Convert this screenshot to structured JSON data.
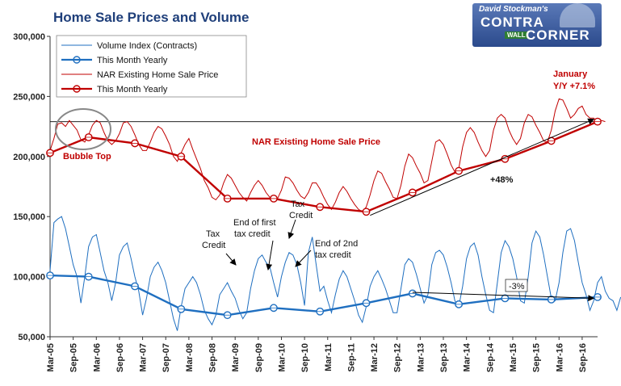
{
  "chart_data": {
    "type": "line",
    "title": "Home Sale Prices and Volume",
    "ylim": [
      50000,
      300000
    ],
    "y_ticks": [
      "50,000",
      "100,000",
      "150,000",
      "200,000",
      "250,000",
      "300,000"
    ],
    "y_tick_values": [
      50000,
      100000,
      150000,
      200000,
      250000,
      300000
    ],
    "x_ticks": [
      "Mar-05",
      "Sep-05",
      "Mar-06",
      "Sep-06",
      "Mar-07",
      "Sep-07",
      "Mar-08",
      "Sep-08",
      "Mar-09",
      "Sep-09",
      "Mar-10",
      "Sep-10",
      "Mar-11",
      "Sep-11",
      "Mar-12",
      "Sep-12",
      "Mar-13",
      "Sep-13",
      "Mar-14",
      "Sep-14",
      "Mar-15",
      "Sep-15",
      "Mar-16",
      "Sep-16"
    ],
    "x_start": "2005-03",
    "x_end": "2017-01",
    "legend_position": "top-left",
    "series": [
      {
        "name": "Volume Index (Contracts)",
        "color": "#1f6fc0",
        "values": [
          105000,
          145000,
          148000,
          150000,
          140000,
          125000,
          110000,
          100000,
          78000,
          100000,
          125000,
          133000,
          135000,
          120000,
          105000,
          95000,
          80000,
          95000,
          118000,
          125000,
          128000,
          115000,
          100000,
          88000,
          68000,
          82000,
          100000,
          108000,
          112000,
          105000,
          95000,
          80000,
          65000,
          55000,
          75000,
          90000,
          95000,
          100000,
          95000,
          85000,
          72000,
          65000,
          60000,
          68000,
          85000,
          90000,
          95000,
          88000,
          82000,
          72000,
          65000,
          70000,
          90000,
          105000,
          115000,
          118000,
          112000,
          108000,
          95000,
          83000,
          100000,
          112000,
          120000,
          118000,
          110000,
          95000,
          76000,
          120000,
          133000,
          110000,
          88000,
          92000,
          80000,
          70000,
          85000,
          98000,
          105000,
          100000,
          90000,
          80000,
          68000,
          62000,
          75000,
          92000,
          100000,
          105000,
          98000,
          90000,
          80000,
          70000,
          70000,
          90000,
          110000,
          115000,
          112000,
          102000,
          90000,
          78000,
          85000,
          110000,
          120000,
          122000,
          118000,
          108000,
          95000,
          80000,
          75000,
          92000,
          115000,
          125000,
          128000,
          118000,
          100000,
          85000,
          72000,
          70000,
          95000,
          120000,
          130000,
          125000,
          115000,
          100000,
          80000,
          78000,
          100000,
          128000,
          138000,
          133000,
          118000,
          100000,
          82000,
          80000,
          95000,
          120000,
          138000,
          140000,
          130000,
          112000,
          95000,
          85000,
          72000,
          80000,
          95000,
          100000,
          88000,
          82000,
          80000,
          72000,
          83000
        ]
      },
      {
        "name": "This Month Yearly",
        "color": "#1f6fc0",
        "dates": [
          "2005-03",
          "2006-01",
          "2007-01",
          "2008-01",
          "2009-01",
          "2010-01",
          "2011-01",
          "2012-01",
          "2013-01",
          "2014-01",
          "2015-01",
          "2016-01",
          "2017-01"
        ],
        "values": [
          101000,
          100000,
          92000,
          73000,
          68000,
          74000,
          71000,
          78000,
          86000,
          77000,
          82000,
          81000,
          83000
        ]
      },
      {
        "name": "NAR Existing Home Sale Price",
        "color": "#c00000",
        "values": [
          205000,
          215000,
          227000,
          228000,
          225000,
          230000,
          226000,
          222000,
          214000,
          212000,
          218000,
          226000,
          230000,
          228000,
          220000,
          213000,
          210000,
          213000,
          219000,
          228000,
          229000,
          225000,
          218000,
          210000,
          205000,
          205000,
          212000,
          220000,
          225000,
          223000,
          217000,
          210000,
          200000,
          196000,
          203000,
          210000,
          215000,
          206000,
          198000,
          190000,
          180000,
          174000,
          166000,
          164000,
          168000,
          178000,
          185000,
          182000,
          176000,
          170000,
          166000,
          163000,
          170000,
          176000,
          180000,
          176000,
          170000,
          166000,
          164000,
          165000,
          172000,
          183000,
          182000,
          178000,
          172000,
          167000,
          165000,
          170000,
          178000,
          178000,
          173000,
          166000,
          160000,
          156000,
          162000,
          170000,
          175000,
          171000,
          165000,
          160000,
          156000,
          154000,
          158000,
          168000,
          180000,
          188000,
          186000,
          179000,
          173000,
          166000,
          165000,
          176000,
          192000,
          202000,
          199000,
          192000,
          186000,
          178000,
          180000,
          196000,
          212000,
          214000,
          210000,
          202000,
          193000,
          187000,
          190000,
          208000,
          220000,
          224000,
          220000,
          212000,
          205000,
          200000,
          205000,
          222000,
          232000,
          235000,
          232000,
          222000,
          215000,
          210000,
          215000,
          228000,
          235000,
          233000,
          226000,
          220000,
          213000,
          212000,
          222000,
          238000,
          248000,
          247000,
          240000,
          232000,
          235000,
          240000,
          242000,
          235000,
          232000,
          232000,
          228000,
          230000,
          229000
        ]
      },
      {
        "name": "This Month Yearly",
        "color": "#c00000",
        "dates": [
          "2005-03",
          "2006-01",
          "2007-01",
          "2008-01",
          "2009-01",
          "2010-01",
          "2011-01",
          "2012-01",
          "2013-01",
          "2014-01",
          "2015-01",
          "2016-01",
          "2017-01"
        ],
        "values": [
          203000,
          216000,
          211000,
          200000,
          165000,
          165000,
          158000,
          154000,
          170000,
          188000,
          198000,
          213000,
          229000
        ]
      }
    ],
    "annotations": {
      "bubble_top": "Bubble Top",
      "nar_label": "NAR Existing Home Sale Price",
      "january": "January",
      "yoy": "Y/Y +7.1%",
      "plus48": "+48%",
      "minus3": "-3%",
      "tax_credit_1a": "Tax",
      "tax_credit_1b": "Credit",
      "end_first_a": "End of first",
      "end_first_b": "tax credit",
      "tax_credit_2a": "Tax",
      "tax_credit_2b": "Credit",
      "end_second_a": "End of 2nd",
      "end_second_b": "tax credit"
    }
  },
  "logo": {
    "top": "David Stockman's",
    "contra": "CONTRA",
    "wall": "WALL",
    "corner": "CORNER"
  }
}
